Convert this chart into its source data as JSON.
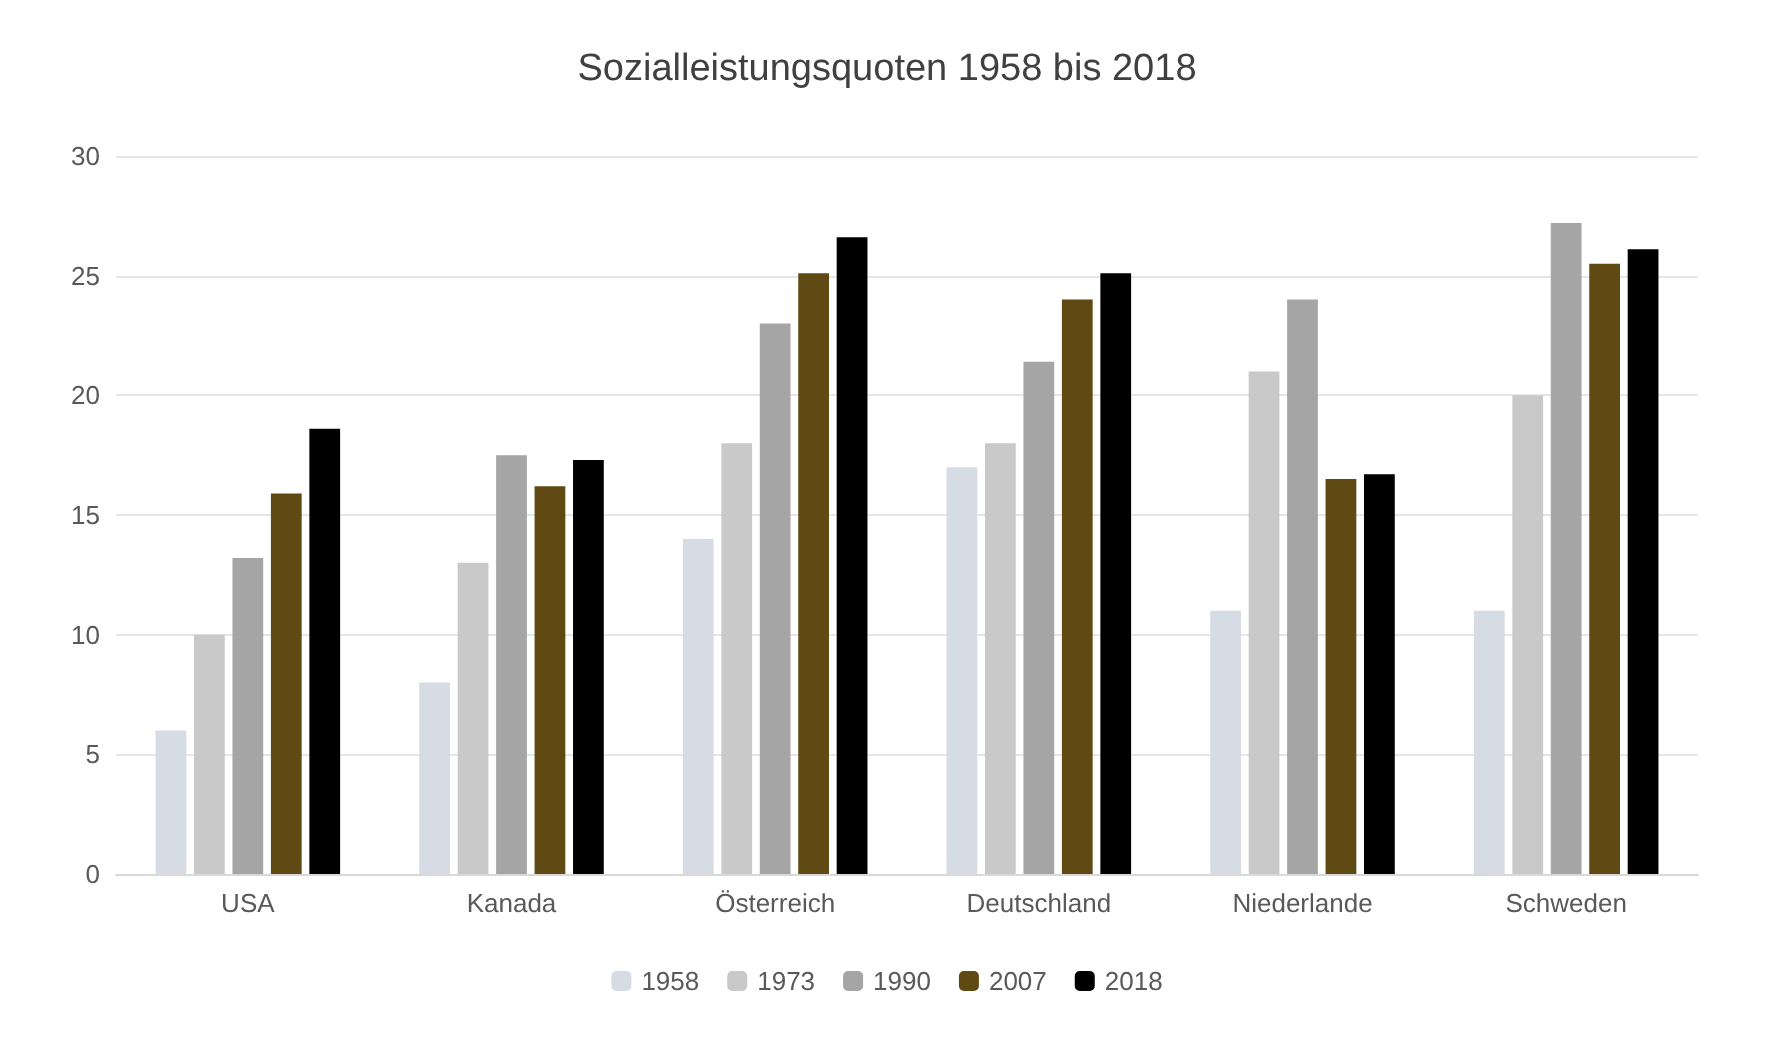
{
  "chart_data": {
    "type": "bar",
    "title": "Sozialleistungsquoten 1958 bis 2018",
    "categories": [
      "USA",
      "Kanada",
      "Österreich",
      "Deutschland",
      "Niederlande",
      "Schweden"
    ],
    "series": [
      {
        "name": "1958",
        "color": "#d6dce4",
        "values": [
          6,
          8,
          14,
          17,
          11,
          11
        ]
      },
      {
        "name": "1973",
        "color": "#c9c9c9",
        "values": [
          10,
          13,
          18,
          18,
          21,
          20
        ]
      },
      {
        "name": "1990",
        "color": "#a5a5a5",
        "values": [
          13.2,
          17.5,
          23.0,
          21.4,
          24.0,
          27.2
        ]
      },
      {
        "name": "2007",
        "color": "#5f4a14",
        "values": [
          15.9,
          16.2,
          25.1,
          24.0,
          16.5,
          25.5
        ]
      },
      {
        "name": "2018",
        "color": "#000000",
        "values": [
          18.6,
          17.3,
          26.6,
          25.1,
          16.7,
          26.1
        ]
      }
    ],
    "ylim": [
      0,
      30
    ],
    "yticks": [
      0,
      5,
      10,
      15,
      20,
      25,
      30
    ],
    "grid": "y",
    "legend": "bottom"
  }
}
